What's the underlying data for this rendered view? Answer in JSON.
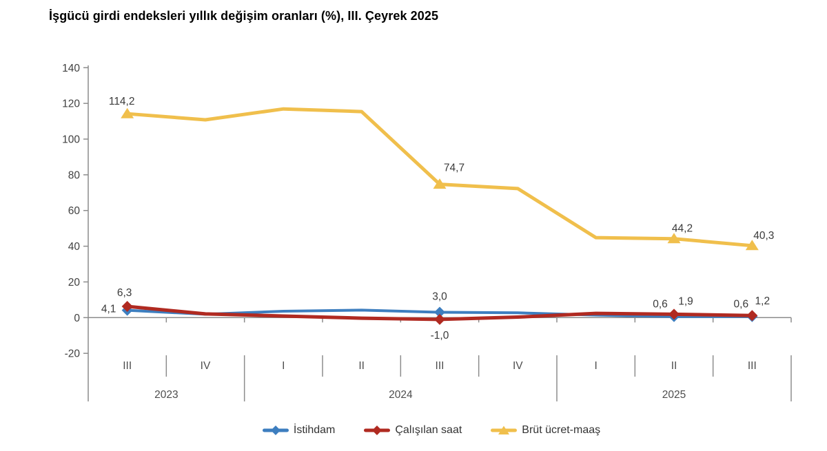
{
  "title": "İşgücü girdi endeksleri yıllık değişim oranları (%), III. Çeyrek 2025",
  "chart_data": {
    "type": "line",
    "title": "İşgücü girdi endeksleri yıllık değişim oranları (%), III. Çeyrek 2025",
    "grid": false,
    "legend_position": "bottom",
    "decimal_separator": ",",
    "y_axis": {
      "min": -20,
      "max": 140,
      "step": 20,
      "tick_labels": [
        "140",
        "120",
        "100",
        "80",
        "60",
        "40",
        "20",
        "0",
        "-20"
      ]
    },
    "x_quarters": [
      "III",
      "IV",
      "I",
      "II",
      "III",
      "IV",
      "I",
      "II",
      "III"
    ],
    "year_groups": [
      {
        "label": "2023",
        "span": 2
      },
      {
        "label": "2024",
        "span": 4
      },
      {
        "label": "2025",
        "span": 3
      }
    ],
    "series": [
      {
        "name": "İstihdam",
        "color": "#3D7EBF",
        "marker": "diamond",
        "values": [
          4.1,
          1.9,
          3.6,
          4.2,
          3.0,
          2.7,
          1.4,
          0.6,
          0.6
        ],
        "point_labels": [
          {
            "i": 0,
            "text": "4,1",
            "dx": -27,
            "dy": 3
          },
          {
            "i": 4,
            "text": "3,0",
            "dx": 0,
            "dy": -18
          },
          {
            "i": 7,
            "text": "0,6",
            "dx": -20,
            "dy": -13
          },
          {
            "i": 8,
            "text": "0,6",
            "dx": -16,
            "dy": -13
          }
        ]
      },
      {
        "name": "Çalışılan saat",
        "color": "#B02A21",
        "marker": "diamond",
        "values": [
          6.3,
          2.1,
          0.9,
          -0.3,
          -1.0,
          0.3,
          2.4,
          1.9,
          1.2
        ],
        "point_labels": [
          {
            "i": 0,
            "text": "6,3",
            "dx": -4,
            "dy": -15
          },
          {
            "i": 4,
            "text": "-1,0",
            "dx": 0,
            "dy": 28
          },
          {
            "i": 7,
            "text": "1,9",
            "dx": 17,
            "dy": -14
          },
          {
            "i": 8,
            "text": "1,2",
            "dx": 15,
            "dy": -16
          }
        ]
      },
      {
        "name": "Brüt ücret-maaş",
        "color": "#F0BF4C",
        "marker": "triangle",
        "values": [
          114.2,
          110.8,
          116.9,
          115.4,
          74.7,
          72.3,
          44.8,
          44.2,
          40.3
        ],
        "point_labels": [
          {
            "i": 0,
            "text": "114,2",
            "dx": -8,
            "dy": -13
          },
          {
            "i": 4,
            "text": "74,7",
            "dx": 21,
            "dy": -19
          },
          {
            "i": 7,
            "text": "44,2",
            "dx": 12,
            "dy": -10
          },
          {
            "i": 8,
            "text": "40,3",
            "dx": 17,
            "dy": -10
          }
        ]
      }
    ],
    "colors": {
      "axis": "#8C8C8C",
      "axis_text": "#404040",
      "data_label_text": "#3A3A3A"
    }
  }
}
